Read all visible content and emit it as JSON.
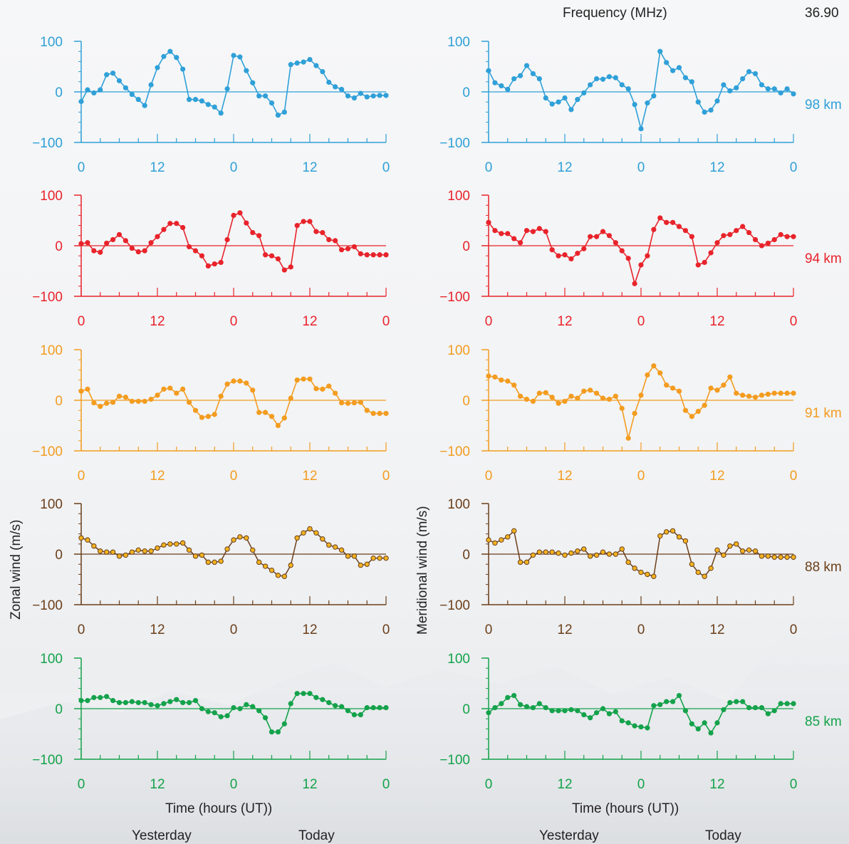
{
  "header": {
    "frequency_label": "Frequency (MHz)",
    "frequency_value": "36.90"
  },
  "labels": {
    "zonal_ylabel": "Zonal wind (m/s)",
    "meridional_ylabel": "Meridional wind (m/s)",
    "xlabel": "Time (hours (UT))",
    "yesterday": "Yesterday",
    "today": "Today"
  },
  "chart_data": [
    {
      "type": "line",
      "panel": "zonal",
      "altitude": "98 km",
      "color": "#2fa0d8",
      "filled_markers": true,
      "x": [
        0,
        1,
        2,
        3,
        4,
        5,
        6,
        7,
        8,
        9,
        10,
        11,
        12,
        13,
        14,
        15,
        16,
        17,
        18,
        19,
        20,
        21,
        22,
        23,
        24,
        25,
        26,
        27,
        28,
        29,
        30,
        31,
        32,
        33,
        34,
        35,
        36,
        37,
        38,
        39,
        40,
        41,
        42,
        43,
        44,
        45,
        46,
        47,
        48
      ],
      "y": [
        -19,
        4,
        -2,
        4,
        34,
        37,
        22,
        8,
        -5,
        -15,
        -27,
        14,
        48,
        70,
        80,
        68,
        45,
        -15,
        -15,
        -18,
        -25,
        -30,
        -42,
        6,
        72,
        69,
        42,
        18,
        -8,
        -8,
        -22,
        -46,
        -40,
        54,
        57,
        59,
        64,
        52,
        40,
        19,
        10,
        5,
        -8,
        -12,
        -3,
        -10,
        -8,
        -7,
        -7
      ],
      "xticks": [
        "0",
        "12",
        "0",
        "12",
        "0"
      ],
      "yticks": [
        "100",
        "0",
        "−100"
      ],
      "ylim": [
        -100,
        100
      ]
    },
    {
      "type": "line",
      "panel": "meridional",
      "altitude": "98 km",
      "color": "#2fa0d8",
      "filled_markers": true,
      "x": [
        0,
        1,
        2,
        3,
        4,
        5,
        6,
        7,
        8,
        9,
        10,
        11,
        12,
        13,
        14,
        15,
        16,
        17,
        18,
        19,
        20,
        21,
        22,
        23,
        24,
        25,
        26,
        27,
        28,
        29,
        30,
        31,
        32,
        33,
        34,
        35,
        36,
        37,
        38,
        39,
        40,
        41,
        42,
        43,
        44,
        45,
        46,
        47,
        48
      ],
      "y": [
        42,
        18,
        12,
        5,
        26,
        32,
        52,
        36,
        26,
        -12,
        -24,
        -20,
        -12,
        -35,
        -15,
        -2,
        14,
        26,
        25,
        30,
        28,
        14,
        6,
        -25,
        -73,
        -22,
        -8,
        80,
        58,
        42,
        48,
        28,
        20,
        -20,
        -40,
        -36,
        -18,
        14,
        2,
        8,
        26,
        40,
        36,
        14,
        6,
        6,
        -2,
        6,
        -4
      ],
      "xticks": [
        "0",
        "12",
        "0",
        "12",
        "0"
      ],
      "yticks": [
        "100",
        "0",
        "−100"
      ],
      "ylim": [
        -100,
        100
      ]
    },
    {
      "type": "line",
      "panel": "zonal",
      "altitude": "94 km",
      "color": "#e8232b",
      "filled_markers": true,
      "x": [
        0,
        1,
        2,
        3,
        4,
        5,
        6,
        7,
        8,
        9,
        10,
        11,
        12,
        13,
        14,
        15,
        16,
        17,
        18,
        19,
        20,
        21,
        22,
        23,
        24,
        25,
        26,
        27,
        28,
        29,
        30,
        31,
        32,
        33,
        34,
        35,
        36,
        37,
        38,
        39,
        40,
        41,
        42,
        43,
        44,
        45,
        46,
        47,
        48
      ],
      "y": [
        4,
        6,
        -10,
        -13,
        5,
        12,
        22,
        10,
        -5,
        -12,
        -10,
        6,
        18,
        32,
        44,
        44,
        36,
        -2,
        -10,
        -20,
        -40,
        -36,
        -33,
        12,
        60,
        65,
        45,
        26,
        20,
        -18,
        -20,
        -26,
        -48,
        -42,
        40,
        48,
        48,
        28,
        26,
        12,
        10,
        -8,
        -6,
        -2,
        -16,
        -18,
        -18,
        -18,
        -18
      ],
      "xticks": [
        "0",
        "12",
        "0",
        "12",
        "0"
      ],
      "yticks": [
        "100",
        "0",
        "−100"
      ],
      "ylim": [
        -100,
        100
      ]
    },
    {
      "type": "line",
      "panel": "meridional",
      "altitude": "94 km",
      "color": "#e8232b",
      "filled_markers": true,
      "x": [
        0,
        1,
        2,
        3,
        4,
        5,
        6,
        7,
        8,
        9,
        10,
        11,
        12,
        13,
        14,
        15,
        16,
        17,
        18,
        19,
        20,
        21,
        22,
        23,
        24,
        25,
        26,
        27,
        28,
        29,
        30,
        31,
        32,
        33,
        34,
        35,
        36,
        37,
        38,
        39,
        40,
        41,
        42,
        43,
        44,
        45,
        46,
        47,
        48
      ],
      "y": [
        46,
        30,
        24,
        24,
        14,
        6,
        30,
        28,
        34,
        28,
        -8,
        -20,
        -18,
        -26,
        -15,
        -6,
        18,
        18,
        28,
        20,
        6,
        -10,
        -25,
        -75,
        -38,
        -20,
        32,
        55,
        46,
        46,
        38,
        30,
        18,
        -38,
        -33,
        -14,
        6,
        20,
        22,
        30,
        38,
        26,
        12,
        0,
        5,
        12,
        22,
        18,
        18
      ],
      "xticks": [
        "0",
        "12",
        "0",
        "12",
        "0"
      ],
      "yticks": [
        "100",
        "0",
        "−100"
      ],
      "ylim": [
        -100,
        100
      ]
    },
    {
      "type": "line",
      "panel": "zonal",
      "altitude": "91 km",
      "color": "#f39c1f",
      "filled_markers": true,
      "x": [
        0,
        1,
        2,
        3,
        4,
        5,
        6,
        7,
        8,
        9,
        10,
        11,
        12,
        13,
        14,
        15,
        16,
        17,
        18,
        19,
        20,
        21,
        22,
        23,
        24,
        25,
        26,
        27,
        28,
        29,
        30,
        31,
        32,
        33,
        34,
        35,
        36,
        37,
        38,
        39,
        40,
        41,
        42,
        43,
        44,
        45,
        46,
        47,
        48
      ],
      "y": [
        18,
        22,
        -5,
        -12,
        -6,
        -4,
        8,
        6,
        -2,
        -2,
        -2,
        2,
        10,
        22,
        24,
        14,
        22,
        -4,
        -20,
        -34,
        -32,
        -28,
        8,
        32,
        38,
        38,
        34,
        20,
        -24,
        -24,
        -32,
        -50,
        -35,
        4,
        40,
        42,
        42,
        23,
        22,
        28,
        14,
        -5,
        -6,
        -5,
        -4,
        -20,
        -26,
        -26,
        -26
      ],
      "xticks": [
        "0",
        "12",
        "0",
        "12",
        "0"
      ],
      "yticks": [
        "100",
        "0",
        "−100"
      ],
      "ylim": [
        -100,
        100
      ]
    },
    {
      "type": "line",
      "panel": "meridional",
      "altitude": "91 km",
      "color": "#f39c1f",
      "filled_markers": true,
      "x": [
        0,
        1,
        2,
        3,
        4,
        5,
        6,
        7,
        8,
        9,
        10,
        11,
        12,
        13,
        14,
        15,
        16,
        17,
        18,
        19,
        20,
        21,
        22,
        23,
        24,
        25,
        26,
        27,
        28,
        29,
        30,
        31,
        32,
        33,
        34,
        35,
        36,
        37,
        38,
        39,
        40,
        41,
        42,
        43,
        44,
        45,
        46,
        47,
        48
      ],
      "y": [
        48,
        46,
        40,
        38,
        30,
        8,
        2,
        -2,
        14,
        15,
        6,
        -6,
        -2,
        8,
        4,
        18,
        20,
        14,
        4,
        2,
        8,
        -16,
        -75,
        -26,
        10,
        50,
        68,
        54,
        30,
        24,
        18,
        -20,
        -32,
        -22,
        -10,
        24,
        20,
        30,
        46,
        14,
        10,
        8,
        6,
        10,
        12,
        14,
        14,
        14,
        14
      ],
      "xticks": [
        "0",
        "12",
        "0",
        "12",
        "0"
      ],
      "yticks": [
        "100",
        "0",
        "−100"
      ],
      "ylim": [
        -100,
        100
      ]
    },
    {
      "type": "line",
      "panel": "zonal",
      "altitude": "88 km",
      "color": "#6b3f1a",
      "fill": "#f2b320",
      "filled_markers": false,
      "x": [
        0,
        1,
        2,
        3,
        4,
        5,
        6,
        7,
        8,
        9,
        10,
        11,
        12,
        13,
        14,
        15,
        16,
        17,
        18,
        19,
        20,
        21,
        22,
        23,
        24,
        25,
        26,
        27,
        28,
        29,
        30,
        31,
        32,
        33,
        34,
        35,
        36,
        37,
        38,
        39,
        40,
        41,
        42,
        43,
        44,
        45,
        46,
        47,
        48
      ],
      "y": [
        32,
        28,
        16,
        6,
        4,
        4,
        -4,
        -2,
        4,
        8,
        6,
        6,
        12,
        18,
        20,
        20,
        22,
        8,
        -4,
        -2,
        -16,
        -16,
        -14,
        10,
        28,
        34,
        32,
        8,
        -16,
        -24,
        -32,
        -42,
        -44,
        -22,
        32,
        42,
        50,
        42,
        30,
        18,
        14,
        8,
        -4,
        -4,
        -22,
        -20,
        -8,
        -8,
        -8
      ],
      "xticks": [
        "0",
        "12",
        "0",
        "12",
        "0"
      ],
      "yticks": [
        "100",
        "0",
        "−100"
      ],
      "ylim": [
        -100,
        100
      ]
    },
    {
      "type": "line",
      "panel": "meridional",
      "altitude": "88 km",
      "color": "#6b3f1a",
      "fill": "#f2b320",
      "filled_markers": false,
      "x": [
        0,
        1,
        2,
        3,
        4,
        5,
        6,
        7,
        8,
        9,
        10,
        11,
        12,
        13,
        14,
        15,
        16,
        17,
        18,
        19,
        20,
        21,
        22,
        23,
        24,
        25,
        26,
        27,
        28,
        29,
        30,
        31,
        32,
        33,
        34,
        35,
        36,
        37,
        38,
        39,
        40,
        41,
        42,
        43,
        44,
        45,
        46,
        47,
        48
      ],
      "y": [
        28,
        22,
        28,
        34,
        46,
        -16,
        -16,
        -2,
        4,
        4,
        4,
        2,
        -2,
        2,
        6,
        10,
        -4,
        -2,
        4,
        0,
        0,
        10,
        -16,
        -28,
        -36,
        -40,
        -44,
        36,
        44,
        46,
        34,
        26,
        -20,
        -36,
        -44,
        -28,
        8,
        -2,
        16,
        20,
        6,
        8,
        6,
        -4,
        -4,
        -6,
        -6,
        -6,
        -6
      ],
      "xticks": [
        "0",
        "12",
        "0",
        "12",
        "0"
      ],
      "yticks": [
        "100",
        "0",
        "−100"
      ],
      "ylim": [
        -100,
        100
      ]
    },
    {
      "type": "line",
      "panel": "zonal",
      "altitude": "85 km",
      "color": "#14a24b",
      "filled_markers": true,
      "x": [
        0,
        1,
        2,
        3,
        4,
        5,
        6,
        7,
        8,
        9,
        10,
        11,
        12,
        13,
        14,
        15,
        16,
        17,
        18,
        19,
        20,
        21,
        22,
        23,
        24,
        25,
        26,
        27,
        28,
        29,
        30,
        31,
        32,
        33,
        34,
        35,
        36,
        37,
        38,
        39,
        40,
        41,
        42,
        43,
        44,
        45,
        46,
        47,
        48
      ],
      "y": [
        16,
        16,
        22,
        22,
        24,
        16,
        12,
        12,
        14,
        12,
        12,
        8,
        6,
        10,
        14,
        18,
        12,
        12,
        16,
        0,
        -6,
        -8,
        -16,
        -14,
        2,
        0,
        8,
        4,
        -4,
        -18,
        -46,
        -46,
        -30,
        10,
        30,
        30,
        30,
        22,
        18,
        12,
        6,
        4,
        -4,
        -12,
        -12,
        2,
        2,
        2,
        2
      ],
      "xticks": [
        "0",
        "12",
        "0",
        "12",
        "0"
      ],
      "yticks": [
        "100",
        "0",
        "−100"
      ],
      "ylim": [
        -100,
        100
      ]
    },
    {
      "type": "line",
      "panel": "meridional",
      "altitude": "85 km",
      "color": "#14a24b",
      "filled_markers": true,
      "x": [
        0,
        1,
        2,
        3,
        4,
        5,
        6,
        7,
        8,
        9,
        10,
        11,
        12,
        13,
        14,
        15,
        16,
        17,
        18,
        19,
        20,
        21,
        22,
        23,
        24,
        25,
        26,
        27,
        28,
        29,
        30,
        31,
        32,
        33,
        34,
        35,
        36,
        37,
        38,
        39,
        40,
        41,
        42,
        43,
        44,
        45,
        46,
        47,
        48
      ],
      "y": [
        -8,
        2,
        10,
        22,
        26,
        8,
        4,
        2,
        10,
        2,
        -4,
        -4,
        -4,
        -2,
        -4,
        -12,
        -18,
        -8,
        0,
        -10,
        -6,
        -24,
        -28,
        -34,
        -36,
        -38,
        6,
        8,
        14,
        14,
        26,
        -4,
        -30,
        -40,
        -28,
        -48,
        -28,
        -2,
        12,
        14,
        14,
        2,
        2,
        2,
        -10,
        -4,
        10,
        10,
        10
      ],
      "xticks": [
        "0",
        "12",
        "0",
        "12",
        "0"
      ],
      "yticks": [
        "100",
        "0",
        "−100"
      ],
      "ylim": [
        -100,
        100
      ]
    }
  ]
}
